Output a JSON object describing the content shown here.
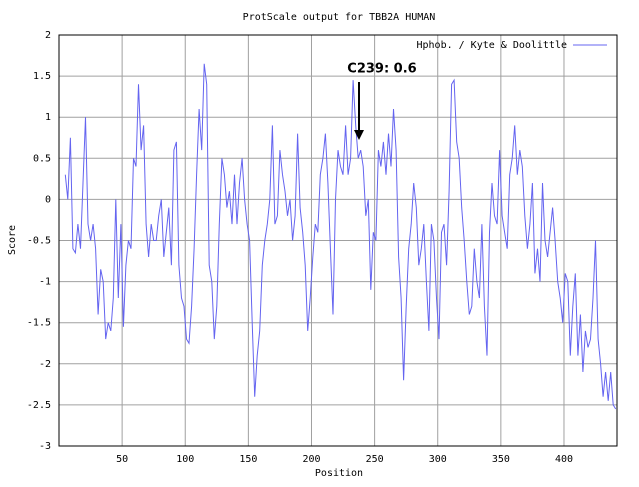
{
  "chart_data": {
    "type": "line",
    "title": "ProtScale output for TBB2A HUMAN",
    "xlabel": "Position",
    "ylabel": "Score",
    "annotation": "C239: 0.6",
    "x": [
      5,
      7,
      9,
      11,
      13,
      15,
      17,
      19,
      21,
      23,
      25,
      27,
      29,
      31,
      33,
      35,
      37,
      39,
      41,
      43,
      45,
      47,
      49,
      51,
      53,
      55,
      57,
      59,
      61,
      63,
      65,
      67,
      69,
      71,
      73,
      75,
      77,
      79,
      81,
      83,
      85,
      87,
      89,
      91,
      93,
      95,
      97,
      99,
      101,
      103,
      105,
      107,
      109,
      111,
      113,
      115,
      117,
      119,
      121,
      123,
      125,
      127,
      129,
      131,
      133,
      135,
      137,
      139,
      141,
      143,
      145,
      147,
      149,
      151,
      153,
      155,
      157,
      159,
      161,
      163,
      165,
      167,
      169,
      171,
      173,
      175,
      177,
      179,
      181,
      183,
      185,
      187,
      189,
      191,
      193,
      195,
      197,
      199,
      201,
      203,
      205,
      207,
      209,
      211,
      213,
      215,
      217,
      219,
      221,
      223,
      225,
      227,
      229,
      231,
      233,
      235,
      237,
      239,
      241,
      243,
      245,
      247,
      249,
      251,
      253,
      255,
      257,
      259,
      261,
      263,
      265,
      267,
      269,
      271,
      273,
      275,
      277,
      279,
      281,
      283,
      285,
      287,
      289,
      291,
      293,
      295,
      297,
      299,
      301,
      303,
      305,
      307,
      309,
      311,
      313,
      315,
      317,
      319,
      321,
      323,
      325,
      327,
      329,
      331,
      333,
      335,
      337,
      339,
      341,
      343,
      345,
      347,
      349,
      351,
      353,
      355,
      357,
      359,
      361,
      363,
      365,
      367,
      369,
      371,
      373,
      375,
      377,
      379,
      381,
      383,
      385,
      387,
      389,
      391,
      393,
      395,
      397,
      399,
      401,
      403,
      405,
      407,
      409,
      411,
      413,
      415,
      417,
      419,
      421,
      423,
      425,
      427,
      429,
      431,
      433,
      435,
      437,
      439,
      441
    ],
    "series": [
      {
        "name": "Hphob. / Kyte & Doolittle",
        "color": "#6464f0",
        "values": [
          0.3,
          0.0,
          0.75,
          -0.6,
          -0.65,
          -0.3,
          -0.6,
          0.2,
          1.0,
          -0.3,
          -0.5,
          -0.3,
          -0.6,
          -1.4,
          -0.85,
          -1.0,
          -1.7,
          -1.5,
          -1.6,
          -1.2,
          0.0,
          -1.2,
          -0.3,
          -1.55,
          -0.8,
          -0.5,
          -0.6,
          0.5,
          0.4,
          1.4,
          0.6,
          0.9,
          -0.3,
          -0.7,
          -0.3,
          -0.5,
          -0.5,
          -0.2,
          0.0,
          -0.7,
          -0.4,
          -0.1,
          -0.8,
          0.6,
          0.7,
          -0.8,
          -1.2,
          -1.3,
          -1.7,
          -1.75,
          -1.3,
          -0.6,
          0.3,
          1.1,
          0.6,
          1.65,
          1.4,
          -0.8,
          -1.0,
          -1.7,
          -1.3,
          -0.3,
          0.5,
          0.3,
          -0.1,
          0.1,
          -0.3,
          0.3,
          -0.3,
          0.2,
          0.5,
          0.0,
          -0.3,
          -0.5,
          -1.5,
          -2.4,
          -1.9,
          -1.6,
          -0.8,
          -0.5,
          -0.3,
          0.0,
          0.9,
          -0.3,
          -0.2,
          0.6,
          0.3,
          0.1,
          -0.2,
          0.0,
          -0.5,
          -0.2,
          0.8,
          -0.1,
          -0.4,
          -0.8,
          -1.6,
          -1.2,
          -0.7,
          -0.3,
          -0.4,
          0.3,
          0.5,
          0.8,
          0.2,
          -0.6,
          -1.4,
          0.0,
          0.6,
          0.4,
          0.3,
          0.9,
          0.3,
          0.5,
          1.45,
          0.9,
          0.5,
          0.6,
          0.4,
          -0.2,
          0.0,
          -1.1,
          -0.4,
          -0.5,
          0.6,
          0.4,
          0.7,
          0.3,
          0.8,
          0.4,
          1.1,
          0.6,
          -0.7,
          -1.2,
          -2.2,
          -1.3,
          -0.6,
          -0.3,
          0.2,
          -0.1,
          -0.8,
          -0.6,
          -0.3,
          -1.0,
          -1.6,
          -0.3,
          -0.5,
          -1.2,
          -1.7,
          -0.4,
          -0.3,
          -0.8,
          0.1,
          1.4,
          1.45,
          0.7,
          0.5,
          -0.1,
          -0.5,
          -1.0,
          -1.4,
          -1.3,
          -0.6,
          -1.0,
          -1.2,
          -0.3,
          -1.3,
          -1.9,
          -0.4,
          0.2,
          -0.2,
          -0.3,
          0.6,
          -0.2,
          -0.4,
          -0.6,
          0.3,
          0.5,
          0.9,
          0.3,
          0.6,
          0.4,
          -0.2,
          -0.6,
          -0.3,
          0.2,
          -0.9,
          -0.6,
          -1.0,
          0.2,
          -0.5,
          -0.7,
          -0.4,
          -0.1,
          -0.5,
          -1.0,
          -1.2,
          -1.5,
          -0.9,
          -1.0,
          -1.9,
          -1.3,
          -0.9,
          -1.9,
          -1.4,
          -2.1,
          -1.6,
          -1.8,
          -1.7,
          -1.2,
          -0.5,
          -1.7,
          -2.0,
          -2.4,
          -2.1,
          -2.45,
          -2.1,
          -2.5,
          -2.55
        ]
      }
    ],
    "xlim": [
      0,
      442
    ],
    "xticks": [
      50,
      100,
      150,
      200,
      250,
      300,
      350,
      400
    ],
    "ylim": [
      -3,
      2
    ],
    "yticks": [
      -3,
      -2.5,
      -2,
      -1.5,
      -1,
      -0.5,
      0,
      0.5,
      1,
      1.5,
      2
    ],
    "grid": true,
    "legend": "upper right"
  }
}
